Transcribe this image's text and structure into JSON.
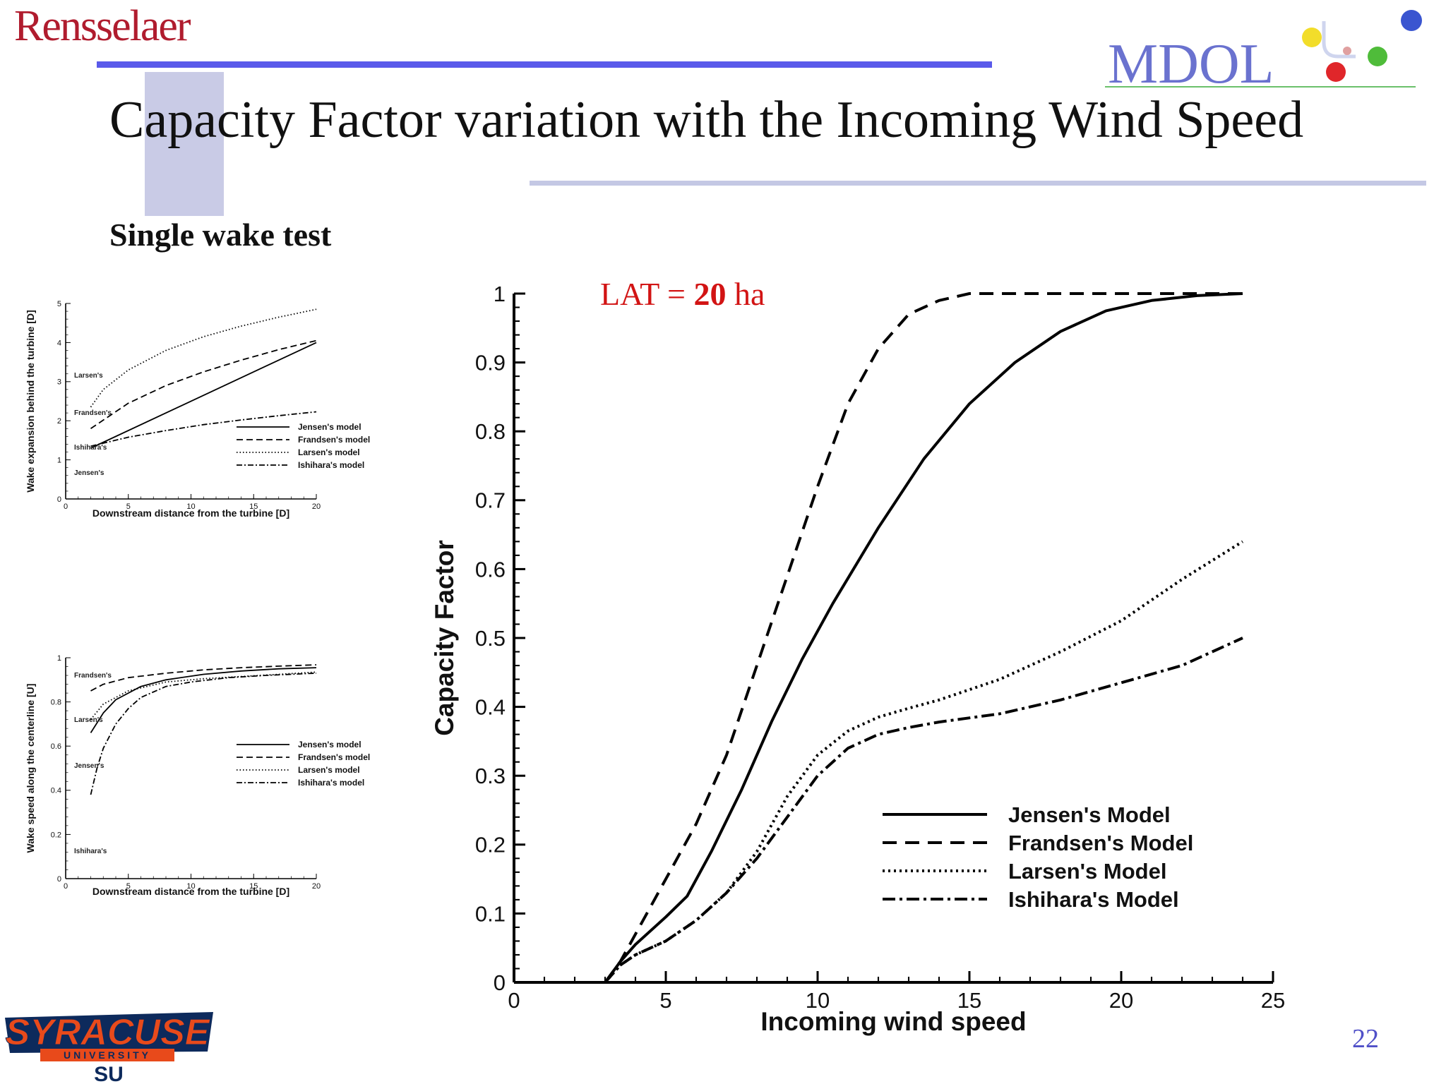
{
  "header": {
    "left_logo_text": "Rensselaer",
    "right_logo_text": "MDOL",
    "title": "Capacity Factor variation with the Incoming Wind Speed",
    "subtitle": "Single wake test"
  },
  "footer": {
    "page_number": "22",
    "logo_text": "SYRACUSE",
    "logo_subtext": "UNIVERSITY",
    "logo_monogram": "SU"
  },
  "colors": {
    "header_rule": "#5a5aea",
    "title_rule": "#c4c8e4",
    "accent_square": "#c9cbe6",
    "rensselaer_red": "#b01c2e",
    "mdol_blue": "#6a72cf",
    "annotation_red": "#d21414",
    "page_number": "#5050c8",
    "syracuse_orange": "#e84a1b",
    "syracuse_navy": "#0d2a5c"
  },
  "chart_data": [
    {
      "id": "wake_expansion",
      "type": "line",
      "title": "",
      "xlabel": "Downstream distance from the turbine [D]",
      "ylabel": "Wake expansion behind the turbine [D]",
      "xlim": [
        0,
        20
      ],
      "ylim": [
        0,
        5
      ],
      "xticks": [
        0,
        5,
        10,
        15,
        20
      ],
      "yticks": [
        0,
        1,
        2,
        3,
        4,
        5
      ],
      "grid": false,
      "legend_position": "lower-right",
      "series": [
        {
          "name": "Jensen's model",
          "style": "solid",
          "x": [
            2,
            20
          ],
          "y": [
            1.3,
            4.0
          ]
        },
        {
          "name": "Frandsen's model",
          "style": "dashed",
          "x": [
            2,
            5,
            8,
            11,
            14,
            17,
            20
          ],
          "y": [
            1.8,
            2.45,
            2.9,
            3.25,
            3.55,
            3.82,
            4.05
          ]
        },
        {
          "name": "Larsen's model",
          "style": "dotted",
          "x": [
            2,
            3,
            5,
            8,
            11,
            14,
            17,
            20
          ],
          "y": [
            2.35,
            2.8,
            3.3,
            3.8,
            4.15,
            4.42,
            4.65,
            4.85
          ]
        },
        {
          "name": "Ishihara's model",
          "style": "dashdot",
          "x": [
            2,
            5,
            8,
            11,
            14,
            17,
            20
          ],
          "y": [
            1.35,
            1.58,
            1.75,
            1.9,
            2.02,
            2.13,
            2.23
          ]
        }
      ],
      "annotations": [
        "Larsen's",
        "Frandsen's",
        "Ishihara's",
        "Jensen's"
      ]
    },
    {
      "id": "wake_speed",
      "type": "line",
      "title": "",
      "xlabel": "Downstream distance from the turbine [D]",
      "ylabel": "Wake speed along the centerline [U]",
      "xlim": [
        0,
        20
      ],
      "ylim": [
        0,
        1
      ],
      "xticks": [
        0,
        5,
        10,
        15,
        20
      ],
      "yticks": [
        0,
        0.2,
        0.4,
        0.6,
        0.8,
        1
      ],
      "grid": false,
      "legend_position": "lower-right",
      "series": [
        {
          "name": "Jensen's model",
          "style": "solid",
          "x": [
            2,
            3,
            4,
            6,
            8,
            11,
            14,
            17,
            20
          ],
          "y": [
            0.66,
            0.75,
            0.81,
            0.87,
            0.9,
            0.925,
            0.94,
            0.95,
            0.955
          ]
        },
        {
          "name": "Frandsen's model",
          "style": "dashed",
          "x": [
            2,
            3,
            5,
            8,
            11,
            14,
            17,
            20
          ],
          "y": [
            0.85,
            0.88,
            0.91,
            0.93,
            0.945,
            0.955,
            0.962,
            0.968
          ]
        },
        {
          "name": "Larsen's model",
          "style": "dotted",
          "x": [
            2,
            3,
            5,
            8,
            11,
            14,
            17,
            20
          ],
          "y": [
            0.72,
            0.79,
            0.85,
            0.89,
            0.905,
            0.915,
            0.925,
            0.935
          ]
        },
        {
          "name": "Ishihara's model",
          "style": "dashdot",
          "x": [
            2,
            2.5,
            3,
            4,
            5,
            6,
            8,
            10,
            13,
            16,
            20
          ],
          "y": [
            0.38,
            0.5,
            0.59,
            0.7,
            0.77,
            0.82,
            0.87,
            0.89,
            0.91,
            0.92,
            0.93
          ]
        }
      ],
      "annotations": [
        "Frandsen's",
        "Larsen's",
        "Jensen's",
        "Ishihara's"
      ]
    },
    {
      "id": "capacity_factor",
      "type": "line",
      "title": "",
      "xlabel": "Incoming wind speed",
      "ylabel": "Capacity Factor",
      "xlim": [
        0,
        25
      ],
      "ylim": [
        0,
        1
      ],
      "xticks": [
        0,
        5,
        10,
        15,
        20,
        25
      ],
      "yticks": [
        0,
        0.1,
        0.2,
        0.3,
        0.4,
        0.5,
        0.6,
        0.7,
        0.8,
        0.9,
        1
      ],
      "grid": false,
      "legend_position": "lower-right",
      "annotation": {
        "prefix": "LAT = ",
        "value": "20",
        "suffix": " ha"
      },
      "series": [
        {
          "name": "Jensen's Model",
          "style": "solid",
          "x": [
            3,
            3.5,
            4,
            5,
            5.7,
            6.5,
            7.5,
            8.5,
            9.5,
            10.5,
            12,
            13.5,
            15,
            16.5,
            18,
            19.5,
            21,
            22.5,
            24
          ],
          "y": [
            0,
            0.03,
            0.055,
            0.095,
            0.125,
            0.19,
            0.28,
            0.38,
            0.47,
            0.55,
            0.66,
            0.76,
            0.84,
            0.9,
            0.945,
            0.975,
            0.99,
            0.997,
            1.0
          ]
        },
        {
          "name": "Frandsen's Model",
          "style": "dashed",
          "x": [
            3,
            3.5,
            4,
            5,
            6,
            7,
            8,
            9,
            10,
            11,
            12,
            13,
            14,
            15,
            16,
            18,
            20,
            22,
            24
          ],
          "y": [
            0,
            0.03,
            0.07,
            0.15,
            0.23,
            0.33,
            0.46,
            0.59,
            0.72,
            0.84,
            0.92,
            0.97,
            0.99,
            1.0,
            1.0,
            1.0,
            1.0,
            1.0,
            1.0
          ]
        },
        {
          "name": "Larsen's Model",
          "style": "dotted",
          "x": [
            3,
            3.5,
            4,
            5,
            6,
            7,
            8,
            9,
            10,
            11,
            12,
            13,
            14,
            16,
            18,
            20,
            22,
            24
          ],
          "y": [
            0,
            0.025,
            0.04,
            0.06,
            0.09,
            0.13,
            0.19,
            0.27,
            0.33,
            0.365,
            0.385,
            0.398,
            0.41,
            0.44,
            0.48,
            0.525,
            0.585,
            0.64
          ]
        },
        {
          "name": "Ishihara's Model",
          "style": "dashdot",
          "x": [
            3,
            3.5,
            4,
            5,
            6,
            7,
            8,
            9,
            10,
            11,
            12,
            13,
            14,
            16,
            18,
            20,
            22,
            24
          ],
          "y": [
            0,
            0.025,
            0.04,
            0.06,
            0.09,
            0.13,
            0.18,
            0.24,
            0.3,
            0.34,
            0.36,
            0.37,
            0.378,
            0.39,
            0.41,
            0.435,
            0.46,
            0.5
          ]
        }
      ]
    }
  ]
}
